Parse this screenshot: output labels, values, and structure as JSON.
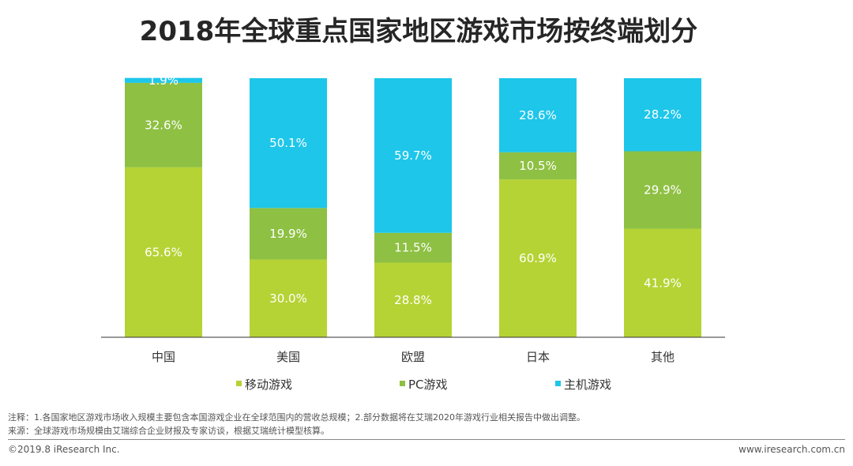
{
  "title": "2018年全球重点国家地区游戏市场按终端划分",
  "colors": {
    "mobile": "#b5d334",
    "pc": "#8ec043",
    "console": "#1ec6ea",
    "axis": "#333333"
  },
  "chart_data": {
    "type": "bar",
    "stacked": true,
    "normalized": true,
    "title": "2018年全球重点国家地区游戏市场按终端划分",
    "categories": [
      "中国",
      "美国",
      "欧盟",
      "日本",
      "其他"
    ],
    "series": [
      {
        "name": "移动游戏",
        "values": [
          65.6,
          30.0,
          28.8,
          60.9,
          41.9
        ],
        "labels": [
          "65.6%",
          "30.0%",
          "28.8%",
          "60.9%",
          "41.9%"
        ]
      },
      {
        "name": "PC游戏",
        "values": [
          32.6,
          19.9,
          11.5,
          10.5,
          29.9
        ],
        "labels": [
          "32.6%",
          "19.9%",
          "11.5%",
          "10.5%",
          "29.9%"
        ]
      },
      {
        "name": "主机游戏",
        "values": [
          1.9,
          50.1,
          59.7,
          28.6,
          28.2
        ],
        "labels": [
          "1.9%",
          "50.1%",
          "59.7%",
          "28.6%",
          "28.2%"
        ]
      }
    ],
    "ylim": [
      0,
      100
    ],
    "grid": false,
    "legend_position": "bottom"
  },
  "notes": {
    "note": "注释：1.各国家地区游戏市场收入规模主要包含本国游戏企业在全球范围内的营收总规模；2.部分数据将在艾瑞2020年游戏行业相关报告中做出调整。",
    "source": "来源：全球游戏市场规模由艾瑞综合企业财报及专家访谈，根据艾瑞统计模型核算。"
  },
  "footer": {
    "copyright": "©2019.8 iResearch Inc.",
    "website": "www.iresearch.com.cn"
  }
}
